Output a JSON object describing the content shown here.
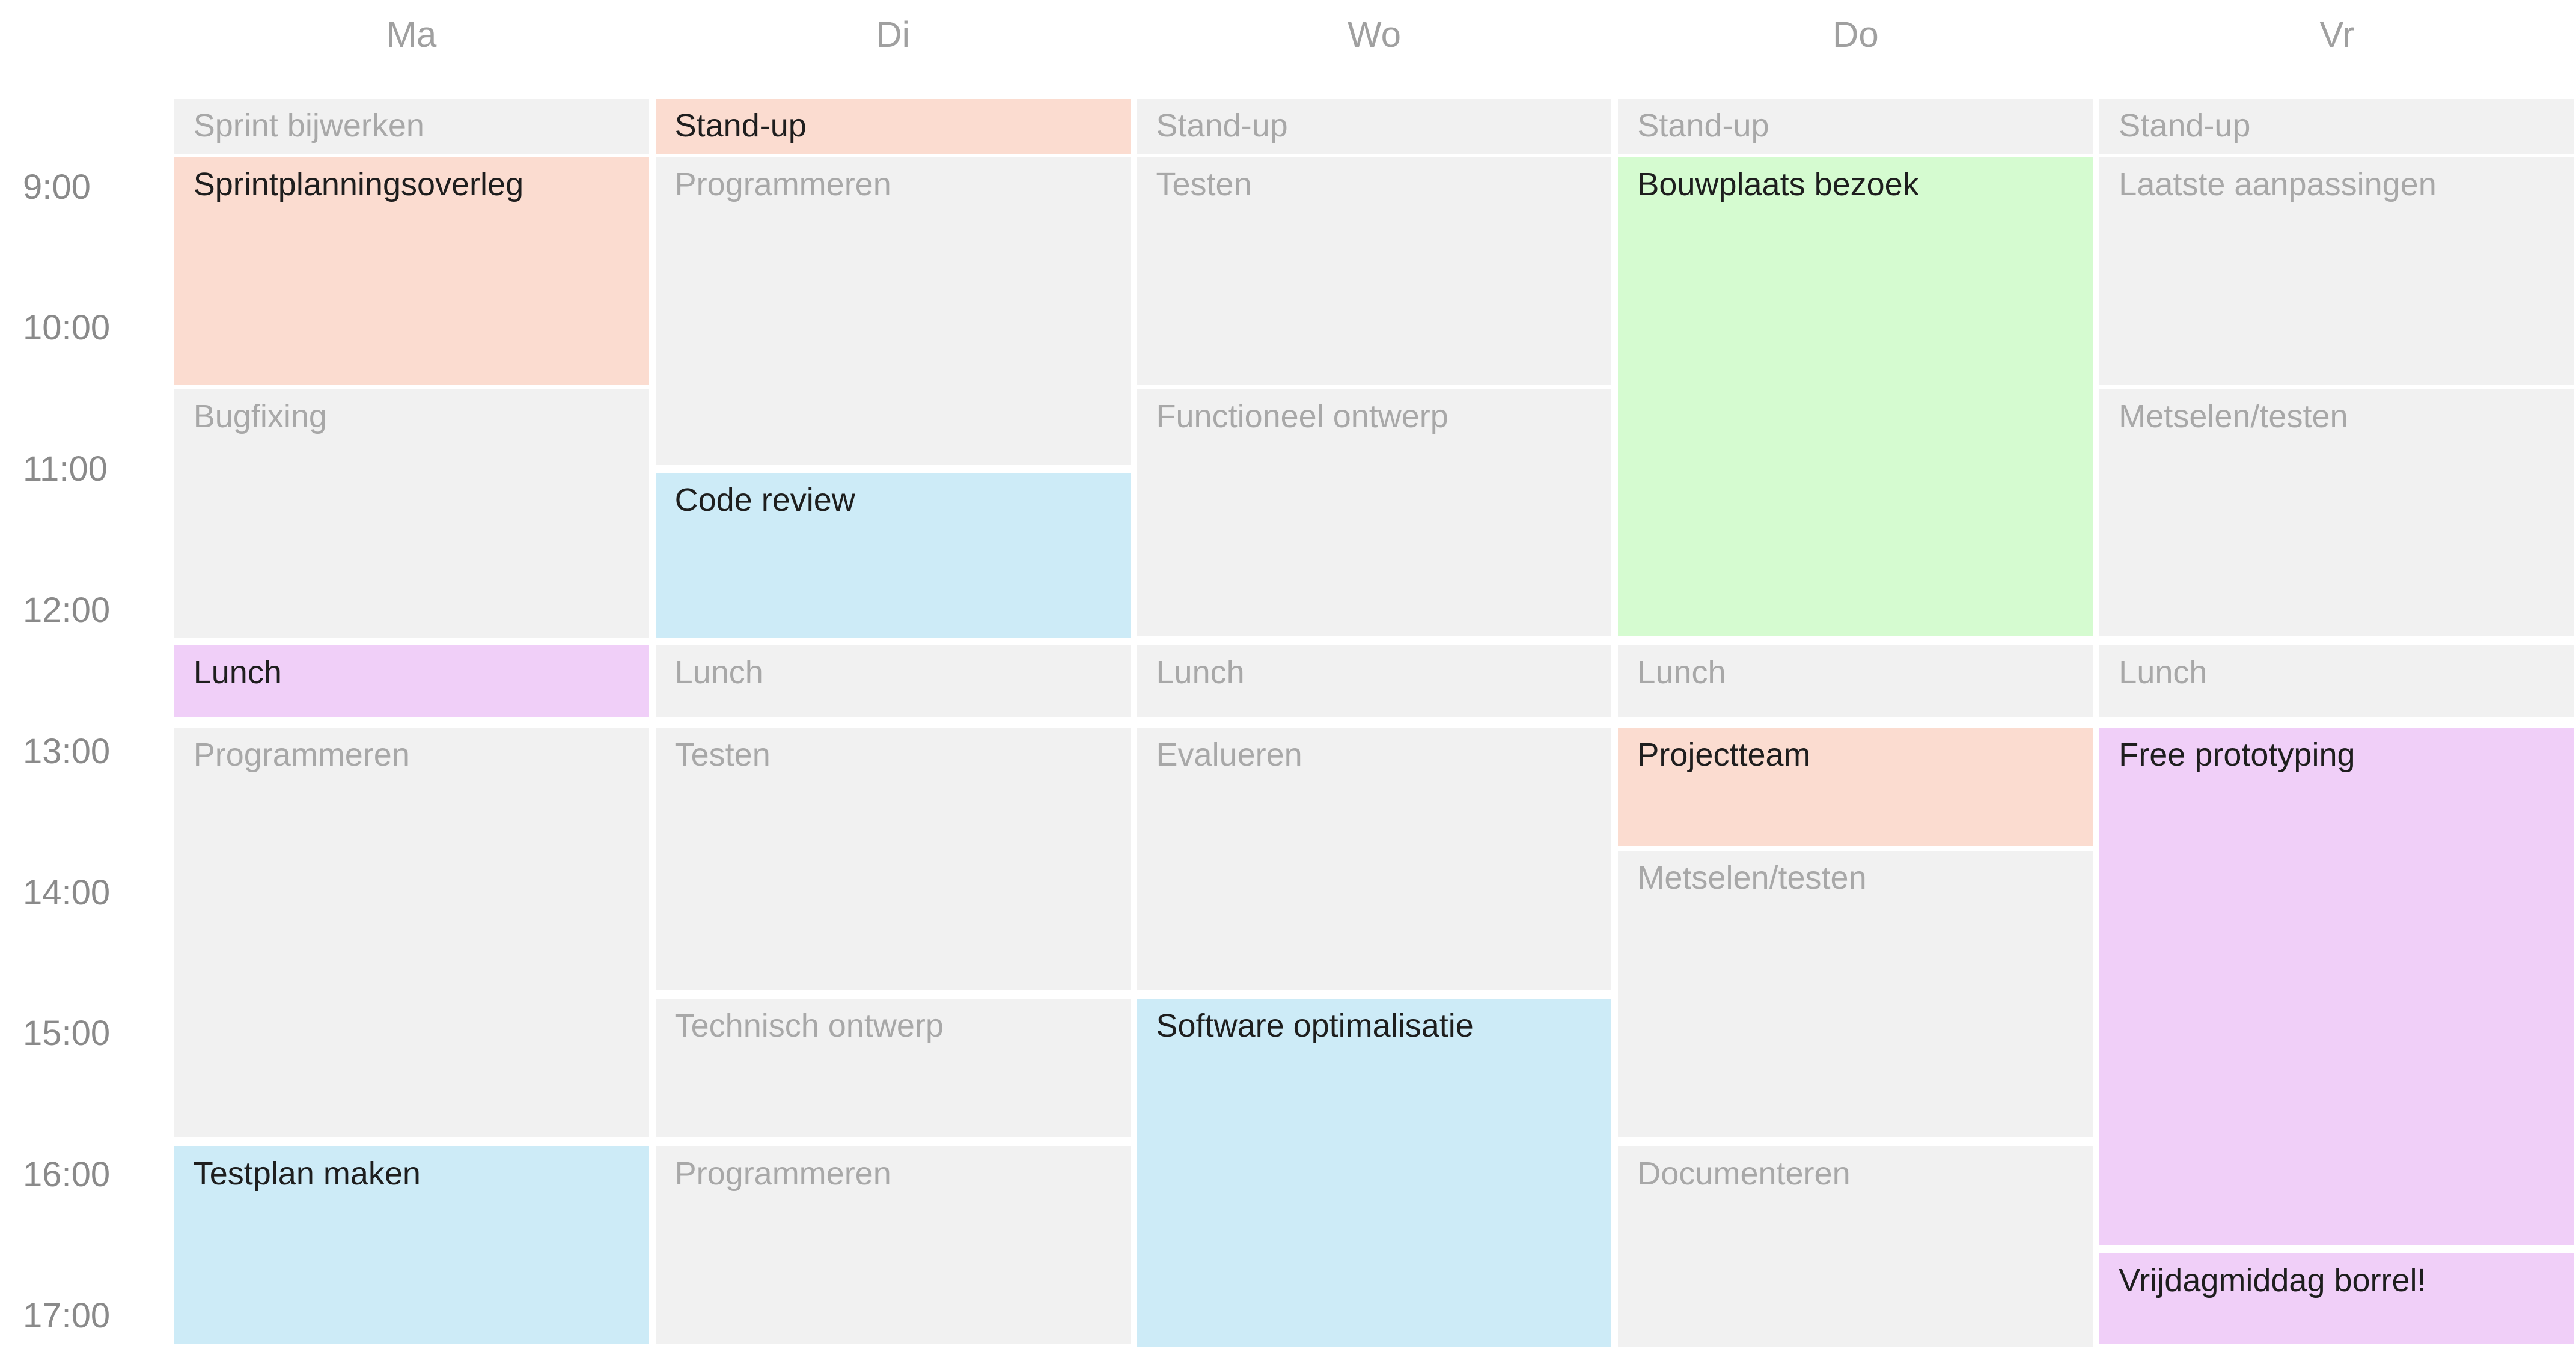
{
  "days": [
    {
      "name": "Ma",
      "events": [
        {
          "title": "Sprint bijwerken"
        },
        {
          "title": "Sprintplanningsoverleg"
        },
        {
          "title": "Bugfixing"
        },
        {
          "title": "Lunch"
        },
        {
          "title": "Programmeren"
        },
        {
          "title": "Testplan maken"
        }
      ]
    },
    {
      "name": "Di",
      "events": [
        {
          "title": "Stand-up"
        },
        {
          "title": "Programmeren"
        },
        {
          "title": "Code review"
        },
        {
          "title": "Lunch"
        },
        {
          "title": "Testen"
        },
        {
          "title": "Technisch ontwerp"
        },
        {
          "title": "Programmeren"
        }
      ]
    },
    {
      "name": "Wo",
      "events": [
        {
          "title": "Stand-up"
        },
        {
          "title": "Testen"
        },
        {
          "title": "Functioneel ontwerp"
        },
        {
          "title": "Lunch"
        },
        {
          "title": "Evalueren"
        },
        {
          "title": "Software optimalisatie"
        }
      ]
    },
    {
      "name": "Do",
      "events": [
        {
          "title": "Stand-up"
        },
        {
          "title": "Bouwplaats bezoek"
        },
        {
          "title": "Lunch"
        },
        {
          "title": "Projectteam"
        },
        {
          "title": "Metselen/testen"
        },
        {
          "title": "Documenteren"
        }
      ]
    },
    {
      "name": "Vr",
      "events": [
        {
          "title": "Stand-up"
        },
        {
          "title": "Laatste aanpassingen"
        },
        {
          "title": "Metselen/testen"
        },
        {
          "title": "Lunch"
        },
        {
          "title": "Free prototyping"
        },
        {
          "title": "Vrijdagmiddag borrel!"
        }
      ]
    }
  ],
  "times": [
    "9:00",
    "10:00",
    "11:00",
    "12:00",
    "13:00",
    "14:00",
    "15:00",
    "16:00",
    "17:00"
  ]
}
